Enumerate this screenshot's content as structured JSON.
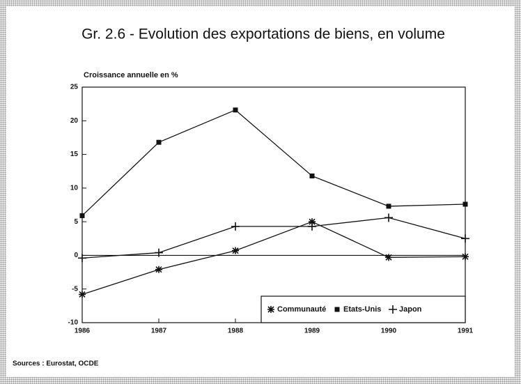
{
  "chart_data": {
    "type": "line",
    "title": "Gr. 2.6 - Evolution des exportations de biens, en volume",
    "y_label": "Croissance annuelle en %",
    "source": "Sources : Eurostat, OCDE",
    "categories": [
      "1986",
      "1987",
      "1988",
      "1989",
      "1990",
      "1991"
    ],
    "series": [
      {
        "name": "Communauté",
        "color": "#111111",
        "marker": "star",
        "values": [
          -5.8,
          -2.1,
          0.7,
          5.0,
          -0.3,
          -0.2
        ]
      },
      {
        "name": "Etats-Unis",
        "color": "#111111",
        "marker": "square",
        "values": [
          5.9,
          16.8,
          21.6,
          11.8,
          7.3,
          7.6
        ]
      },
      {
        "name": "Japon",
        "color": "#111111",
        "marker": "plus",
        "values": [
          -0.4,
          0.4,
          4.3,
          4.3,
          5.6,
          2.5
        ]
      }
    ],
    "ylim": [
      -10,
      25
    ],
    "yticks": [
      -10,
      -5,
      0,
      5,
      10,
      15,
      20,
      25
    ],
    "zero_line": true,
    "legend": "lower right"
  }
}
